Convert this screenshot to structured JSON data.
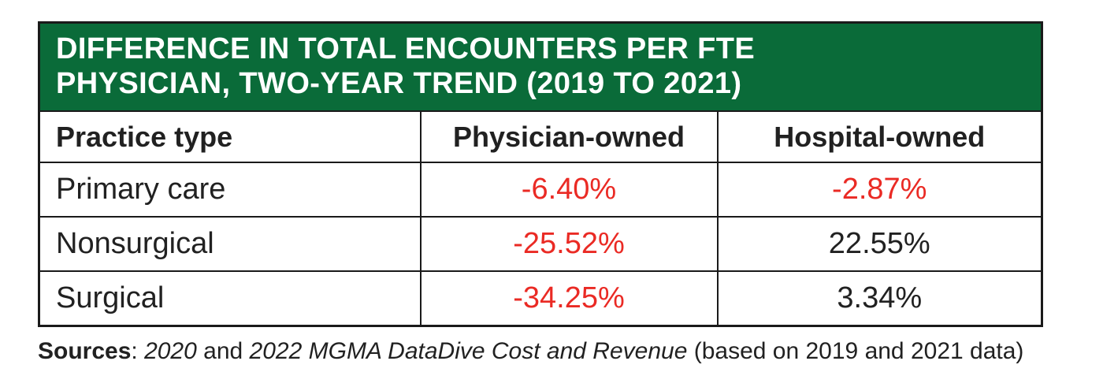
{
  "colors": {
    "header_green": "#0a6b39",
    "negative_red": "#ea2a24",
    "border_ink": "#1a1a1a",
    "text_black": "#212121",
    "title_text": "#ffffff",
    "background": "#ffffff"
  },
  "header": {
    "title_line1": "DIFFERENCE IN TOTAL ENCOUNTERS PER FTE",
    "title_line2": "PHYSICIAN, TWO-YEAR TREND (2019 TO 2021)"
  },
  "table": {
    "columns": [
      "Practice type",
      "Physician-owned",
      "Hospital-owned"
    ],
    "rows": [
      {
        "label": "Primary care",
        "physician_owned": "-6.40%",
        "hospital_owned": "-2.87%"
      },
      {
        "label": "Nonsurgical",
        "physician_owned": "-25.52%",
        "hospital_owned": "22.55%"
      },
      {
        "label": "Surgical",
        "physician_owned": "-34.25%",
        "hospital_owned": "3.34%"
      }
    ]
  },
  "source": {
    "parts": [
      {
        "text": "Sources",
        "bold": true
      },
      {
        "text": ": "
      },
      {
        "text": "2020",
        "italic": true
      },
      {
        "text": " and "
      },
      {
        "text": "2022 MGMA DataDive Cost and Revenue",
        "italic": true
      },
      {
        "text": " (based on 2019 and 2021 data)"
      }
    ]
  },
  "chart_data": {
    "type": "table",
    "title": "Difference in total encounters per FTE physician, two-year trend (2019 to 2021)",
    "columns": [
      "Practice type",
      "Physician-owned",
      "Hospital-owned"
    ],
    "rows": [
      [
        "Primary care",
        -6.4,
        -2.87
      ],
      [
        "Nonsurgical",
        -25.52,
        22.55
      ],
      [
        "Surgical",
        -34.25,
        3.34
      ]
    ],
    "units": "percent",
    "notes": "Negative values rendered in red; source: 2020 and 2022 MGMA DataDive Cost and Revenue (based on 2019 and 2021 data)"
  }
}
